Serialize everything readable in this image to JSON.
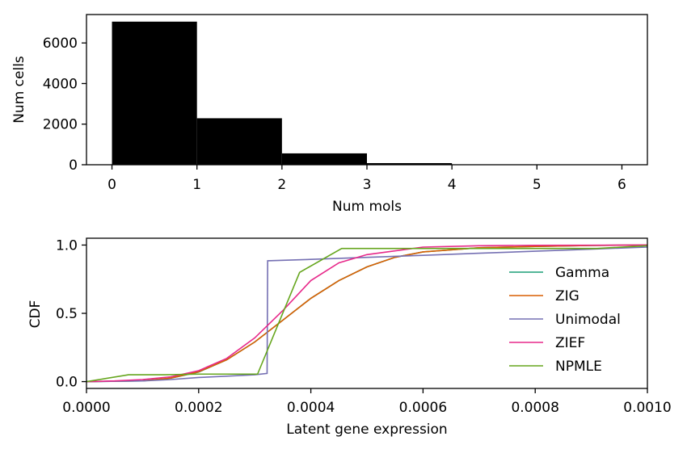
{
  "chart_data": [
    {
      "type": "bar",
      "bins": [
        [
          0,
          1
        ],
        [
          1,
          2
        ],
        [
          2,
          3
        ],
        [
          3,
          4
        ],
        [
          4,
          5
        ],
        [
          5,
          6
        ]
      ],
      "values": [
        7050,
        2290,
        560,
        80,
        8,
        1
      ],
      "xlabel": "Num mols",
      "ylabel": "Num cells",
      "xlim": [
        -0.3,
        6.3
      ],
      "ylim": [
        0,
        7400
      ],
      "xticks": [
        0,
        1,
        2,
        3,
        4,
        5,
        6
      ],
      "xtick_labels": [
        "0",
        "1",
        "2",
        "3",
        "4",
        "5",
        "6"
      ],
      "yticks": [
        0,
        2000,
        4000,
        6000
      ],
      "ytick_labels": [
        "0",
        "2000",
        "4000",
        "6000"
      ],
      "bar_color": "#000000",
      "grid": false
    },
    {
      "type": "line",
      "xlabel": "Latent gene expression",
      "ylabel": "CDF",
      "xlim": [
        0,
        0.001
      ],
      "ylim": [
        -0.05,
        1.05
      ],
      "xticks": [
        0,
        0.0002,
        0.0004,
        0.0006,
        0.0008,
        0.001
      ],
      "xtick_labels": [
        "0.0000",
        "0.0002",
        "0.0004",
        "0.0006",
        "0.0008",
        "0.0010"
      ],
      "yticks": [
        0,
        0.5,
        1
      ],
      "ytick_labels": [
        "0.0",
        "0.5",
        "1.0"
      ],
      "legend": "center-right",
      "grid": false,
      "series": [
        {
          "name": "Gamma",
          "color": "#1b9e77",
          "x": [
            0,
            0.0001,
            0.00015,
            0.0002,
            0.00025,
            0.0003,
            0.00035,
            0.0004,
            0.00045,
            0.0005,
            0.00055,
            0.0006,
            0.0007,
            0.0008,
            0.0009,
            0.001
          ],
          "y": [
            0,
            0.005,
            0.025,
            0.07,
            0.16,
            0.29,
            0.45,
            0.61,
            0.74,
            0.84,
            0.91,
            0.95,
            0.98,
            0.99,
            0.997,
            1.0
          ]
        },
        {
          "name": "ZIG",
          "color": "#d95f02",
          "x": [
            0,
            0.0001,
            0.00015,
            0.0002,
            0.00025,
            0.0003,
            0.00035,
            0.0004,
            0.00045,
            0.0005,
            0.00055,
            0.0006,
            0.0007,
            0.0008,
            0.0009,
            0.001
          ],
          "y": [
            0,
            0.006,
            0.026,
            0.072,
            0.16,
            0.29,
            0.45,
            0.61,
            0.74,
            0.84,
            0.91,
            0.95,
            0.98,
            0.99,
            0.997,
            1.0
          ]
        },
        {
          "name": "Unimodal",
          "color": "#7570b3",
          "x": [
            0,
            0.0001,
            0.00015,
            0.0002,
            0.00025,
            0.0003,
            0.000322,
            0.000323,
            0.0004,
            0.0005,
            0.0006,
            0.0007,
            0.0008,
            0.0009,
            0.001
          ],
          "y": [
            0,
            0.005,
            0.015,
            0.03,
            0.04,
            0.05,
            0.06,
            0.885,
            0.895,
            0.91,
            0.925,
            0.94,
            0.955,
            0.97,
            0.985
          ]
        },
        {
          "name": "ZIEF",
          "color": "#e7298a",
          "x": [
            0,
            5e-05,
            0.0001,
            0.00015,
            0.0002,
            0.00025,
            0.0003,
            0.00035,
            0.0004,
            0.00045,
            0.0005,
            0.0006,
            0.0007,
            0.0008,
            0.0009,
            0.001
          ],
          "y": [
            0,
            0.005,
            0.015,
            0.035,
            0.08,
            0.17,
            0.32,
            0.52,
            0.74,
            0.87,
            0.93,
            0.985,
            0.995,
            0.998,
            0.999,
            1.0
          ]
        },
        {
          "name": "NPMLE",
          "color": "#66a61e",
          "x": [
            0,
            7.5e-05,
            0.00014,
            0.0002,
            0.00025,
            0.000305,
            0.00038,
            0.000455,
            0.00055,
            0.0007,
            0.0008,
            0.00091,
            0.001
          ],
          "y": [
            0,
            0.05,
            0.05,
            0.055,
            0.055,
            0.055,
            0.8,
            0.975,
            0.975,
            0.975,
            0.975,
            0.975,
            0.995
          ]
        }
      ]
    }
  ]
}
